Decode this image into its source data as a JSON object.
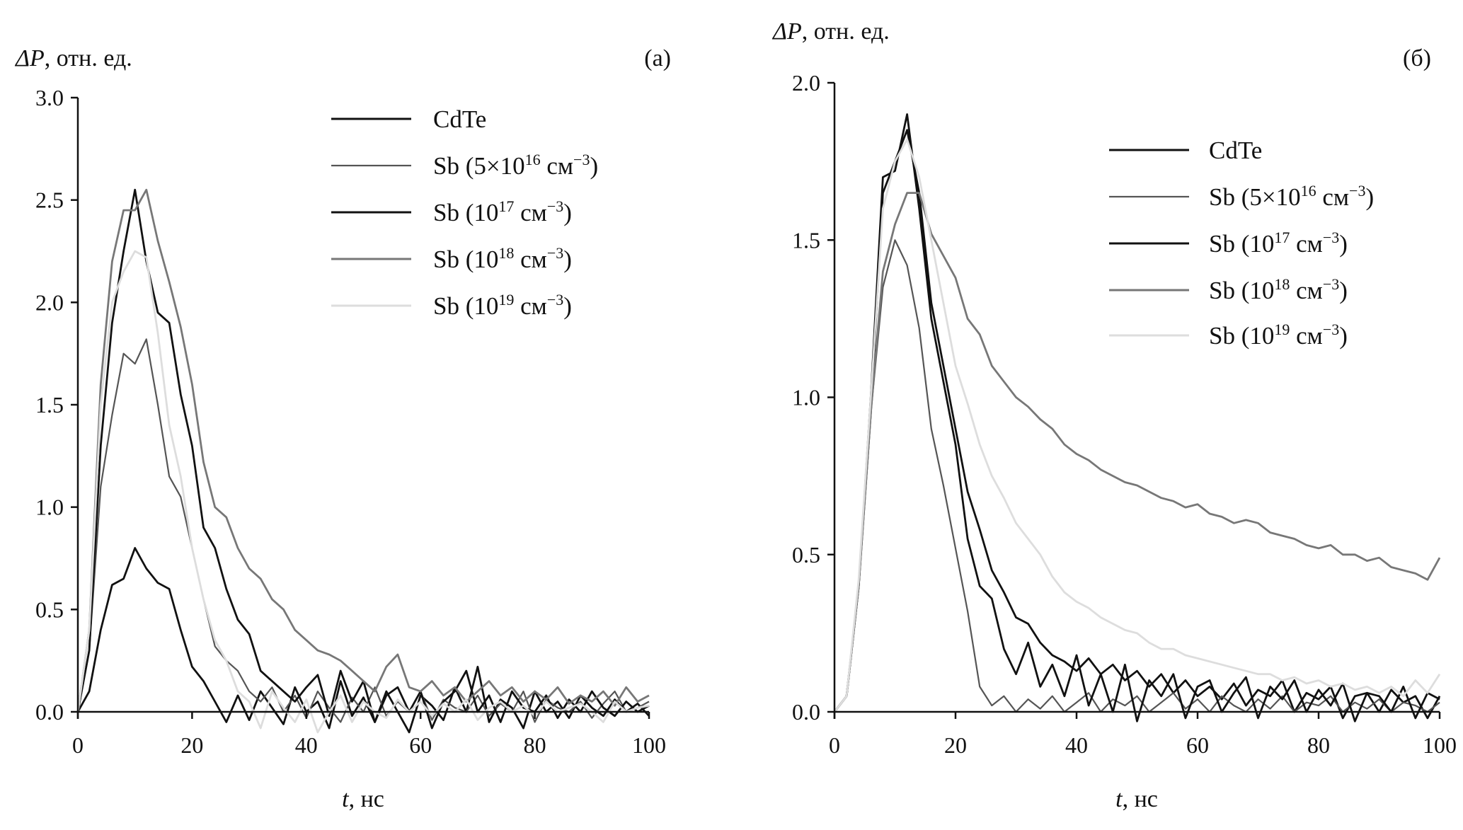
{
  "chart_data": [
    {
      "type": "line",
      "panel_label": "(a)",
      "ylabel_sym": "ΔP",
      "ylabel_rest": ", отн. ед.",
      "xlabel_sym": "t",
      "xlabel_rest": ", нс",
      "xlim": [
        0,
        100
      ],
      "ylim": [
        0,
        3.0
      ],
      "xticks": [
        "0",
        "20",
        "40",
        "60",
        "80",
        "100"
      ],
      "yticks": [
        "0.0",
        "0.5",
        "1.0",
        "1.5",
        "2.0",
        "2.5",
        "3.0"
      ],
      "grid": false,
      "legend_position": "top-right",
      "x_step": 2,
      "series": [
        {
          "legend": {
            "a": "CdTe",
            "s1": "",
            "b": "",
            "s2": "",
            "c": ""
          },
          "color": "#111111",
          "values": [
            0,
            0.1,
            0.4,
            0.62,
            0.65,
            0.8,
            0.7,
            0.63,
            0.6,
            0.4,
            0.22,
            0.15,
            0.05,
            -0.05,
            0.08,
            -0.04,
            0.1,
            0.02,
            -0.06,
            0.12,
            0.0,
            0.05,
            -0.08,
            0.15,
            -0.02,
            0.07,
            -0.05,
            0.1,
            0.0,
            -0.1,
            0.08,
            0.03,
            -0.04,
            0.12,
            0.0,
            0.22,
            -0.05,
            0.06,
            0.02,
            -0.08,
            0.1,
            0.0,
            0.05,
            -0.03,
            0.08,
            0.02,
            -0.02,
            0.06,
            0.0,
            0.04,
            -0.02
          ]
        },
        {
          "legend": {
            "a": "Sb (5×10",
            "s1": "16",
            "b": " см",
            "s2": "−3",
            "c": ")"
          },
          "color": "#555555",
          "values": [
            0,
            0.3,
            1.1,
            1.45,
            1.75,
            1.7,
            1.82,
            1.5,
            1.15,
            1.05,
            0.8,
            0.55,
            0.32,
            0.25,
            0.2,
            0.1,
            0.05,
            0.12,
            0.0,
            0.08,
            -0.03,
            0.1,
            0.02,
            -0.05,
            0.07,
            0.0,
            0.12,
            -0.02,
            0.05,
            0.0,
            0.1,
            -0.04,
            0.06,
            0.02,
            0.0,
            0.08,
            -0.02,
            0.04,
            0.0,
            0.1,
            -0.05,
            0.06,
            0.02,
            0.0,
            0.05,
            -0.03,
            0.04,
            0.1,
            0.0,
            0.02,
            0.05
          ]
        },
        {
          "legend": {
            "a": "Sb (10",
            "s1": "17",
            "b": " см",
            "s2": "−3",
            "c": ")"
          },
          "color": "#111111",
          "values": [
            0,
            0.3,
            1.3,
            1.9,
            2.25,
            2.55,
            2.2,
            1.95,
            1.9,
            1.55,
            1.3,
            0.9,
            0.8,
            0.6,
            0.45,
            0.38,
            0.2,
            0.15,
            0.1,
            0.05,
            0.12,
            0.18,
            -0.02,
            0.2,
            0.05,
            0.15,
            -0.05,
            0.08,
            0.12,
            0.0,
            0.1,
            -0.08,
            0.05,
            0.1,
            0.2,
            0.0,
            0.08,
            -0.05,
            0.1,
            0.02,
            0.0,
            0.08,
            -0.03,
            0.06,
            0.0,
            0.1,
            0.02,
            -0.02,
            0.05,
            0.0,
            0.03
          ]
        },
        {
          "legend": {
            "a": "Sb (10",
            "s1": "18",
            "b": " см",
            "s2": "−3",
            "c": ")"
          },
          "color": "#777777",
          "values": [
            0,
            0.4,
            1.6,
            2.2,
            2.45,
            2.45,
            2.55,
            2.3,
            2.1,
            1.88,
            1.6,
            1.22,
            1.0,
            0.95,
            0.8,
            0.7,
            0.65,
            0.55,
            0.5,
            0.4,
            0.35,
            0.3,
            0.28,
            0.25,
            0.2,
            0.15,
            0.1,
            0.22,
            0.28,
            0.12,
            0.1,
            0.15,
            0.08,
            0.12,
            0.05,
            0.1,
            0.15,
            0.08,
            0.12,
            0.05,
            0.1,
            0.06,
            0.12,
            0.04,
            0.08,
            0.05,
            0.1,
            0.03,
            0.12,
            0.05,
            0.08
          ]
        },
        {
          "legend": {
            "a": "Sb (10",
            "s1": "19",
            "b": " см",
            "s2": "−3",
            "c": ")"
          },
          "color": "#dddddd",
          "values": [
            0,
            0.4,
            1.5,
            2.0,
            2.15,
            2.25,
            2.22,
            1.85,
            1.4,
            1.15,
            0.8,
            0.55,
            0.35,
            0.25,
            0.1,
            0.05,
            -0.08,
            0.1,
            0.02,
            -0.05,
            0.06,
            -0.1,
            0.0,
            0.08,
            -0.05,
            0.05,
            0.0,
            -0.03,
            0.06,
            0.0,
            0.05,
            -0.02,
            0.04,
            0.0,
            0.06,
            -0.04,
            0.02,
            0.05,
            0.0,
            0.03,
            -0.02,
            0.05,
            0.0,
            0.02,
            0.04,
            0.0,
            -0.05,
            0.05,
            0.0,
            0.02,
            0.03
          ]
        }
      ]
    },
    {
      "type": "line",
      "panel_label": "(б)",
      "ylabel_sym": "ΔP",
      "ylabel_rest": ", отн. ед.",
      "xlabel_sym": "t",
      "xlabel_rest": ", нс",
      "xlim": [
        0,
        100
      ],
      "ylim": [
        0,
        2.0
      ],
      "xticks": [
        "0",
        "20",
        "40",
        "60",
        "80",
        "100"
      ],
      "yticks": [
        "0.0",
        "0.5",
        "1.0",
        "1.5",
        "2.0"
      ],
      "grid": false,
      "legend_position": "top-right",
      "x_step": 2,
      "series": [
        {
          "legend": {
            "a": "CdTe",
            "s1": "",
            "b": "",
            "s2": "",
            "c": ""
          },
          "color": "#111111",
          "values": [
            0,
            0.05,
            0.4,
            0.95,
            1.65,
            1.75,
            1.85,
            1.65,
            1.3,
            1.1,
            0.9,
            0.7,
            0.58,
            0.45,
            0.38,
            0.3,
            0.28,
            0.22,
            0.18,
            0.16,
            0.13,
            0.17,
            0.12,
            0.15,
            0.1,
            0.13,
            0.08,
            0.12,
            0.06,
            0.1,
            0.05,
            0.08,
            0.04,
            0.09,
            0.02,
            0.07,
            0.05,
            0.1,
            0.0,
            0.06,
            0.04,
            0.08,
            -0.02,
            0.05,
            0.06,
            0.0,
            0.07,
            0.03,
            0.05,
            -0.02,
            0.05
          ]
        },
        {
          "legend": {
            "a": "Sb (5×10",
            "s1": "16",
            "b": " см",
            "s2": "−3",
            "c": ")"
          },
          "color": "#555555",
          "values": [
            0,
            0.05,
            0.4,
            0.95,
            1.35,
            1.5,
            1.42,
            1.22,
            0.9,
            0.72,
            0.52,
            0.32,
            0.08,
            0.02,
            0.05,
            0.0,
            0.04,
            0.01,
            0.05,
            0.0,
            0.03,
            0.06,
            0.0,
            0.04,
            0.02,
            0.05,
            0.0,
            0.03,
            0.06,
            0.01,
            0.04,
            0.0,
            0.05,
            0.02,
            0.0,
            0.04,
            0.01,
            0.05,
            0.0,
            0.03,
            0.02,
            0.05,
            0.0,
            0.03,
            0.01,
            0.04,
            0.0,
            0.03,
            0.02,
            0.0,
            0.03
          ]
        },
        {
          "legend": {
            "a": "Sb (10",
            "s1": "17",
            "b": " см",
            "s2": "−3",
            "c": ")"
          },
          "color": "#111111",
          "values": [
            0,
            0.05,
            0.4,
            1.0,
            1.7,
            1.72,
            1.9,
            1.6,
            1.25,
            1.05,
            0.85,
            0.55,
            0.4,
            0.36,
            0.2,
            0.12,
            0.22,
            0.08,
            0.15,
            0.05,
            0.18,
            0.02,
            0.12,
            0.0,
            0.15,
            -0.03,
            0.1,
            0.05,
            0.12,
            -0.02,
            0.08,
            0.1,
            0.0,
            0.06,
            0.11,
            -0.02,
            0.08,
            0.04,
            0.1,
            0.0,
            0.07,
            0.02,
            0.09,
            -0.03,
            0.06,
            0.05,
            0.0,
            0.08,
            -0.02,
            0.06,
            0.04
          ]
        },
        {
          "legend": {
            "a": "Sb (10",
            "s1": "18",
            "b": " см",
            "s2": "−3",
            "c": ")"
          },
          "color": "#777777",
          "values": [
            0,
            0.05,
            0.4,
            0.95,
            1.4,
            1.55,
            1.65,
            1.65,
            1.52,
            1.45,
            1.38,
            1.25,
            1.2,
            1.1,
            1.05,
            1.0,
            0.97,
            0.93,
            0.9,
            0.85,
            0.82,
            0.8,
            0.77,
            0.75,
            0.73,
            0.72,
            0.7,
            0.68,
            0.67,
            0.65,
            0.66,
            0.63,
            0.62,
            0.6,
            0.61,
            0.6,
            0.57,
            0.56,
            0.55,
            0.53,
            0.52,
            0.53,
            0.5,
            0.5,
            0.48,
            0.49,
            0.46,
            0.45,
            0.44,
            0.42,
            0.49
          ]
        },
        {
          "legend": {
            "a": "Sb (10",
            "s1": "19",
            "b": " см",
            "s2": "−3",
            "c": ")"
          },
          "color": "#dddddd",
          "values": [
            0,
            0.05,
            0.42,
            1.0,
            1.6,
            1.75,
            1.82,
            1.7,
            1.5,
            1.3,
            1.1,
            0.98,
            0.85,
            0.75,
            0.68,
            0.6,
            0.55,
            0.5,
            0.43,
            0.38,
            0.35,
            0.33,
            0.3,
            0.28,
            0.26,
            0.25,
            0.22,
            0.2,
            0.2,
            0.18,
            0.17,
            0.16,
            0.15,
            0.14,
            0.13,
            0.12,
            0.12,
            0.1,
            0.11,
            0.09,
            0.1,
            0.08,
            0.09,
            0.07,
            0.08,
            0.06,
            0.08,
            0.05,
            0.1,
            0.06,
            0.12
          ]
        }
      ]
    }
  ]
}
